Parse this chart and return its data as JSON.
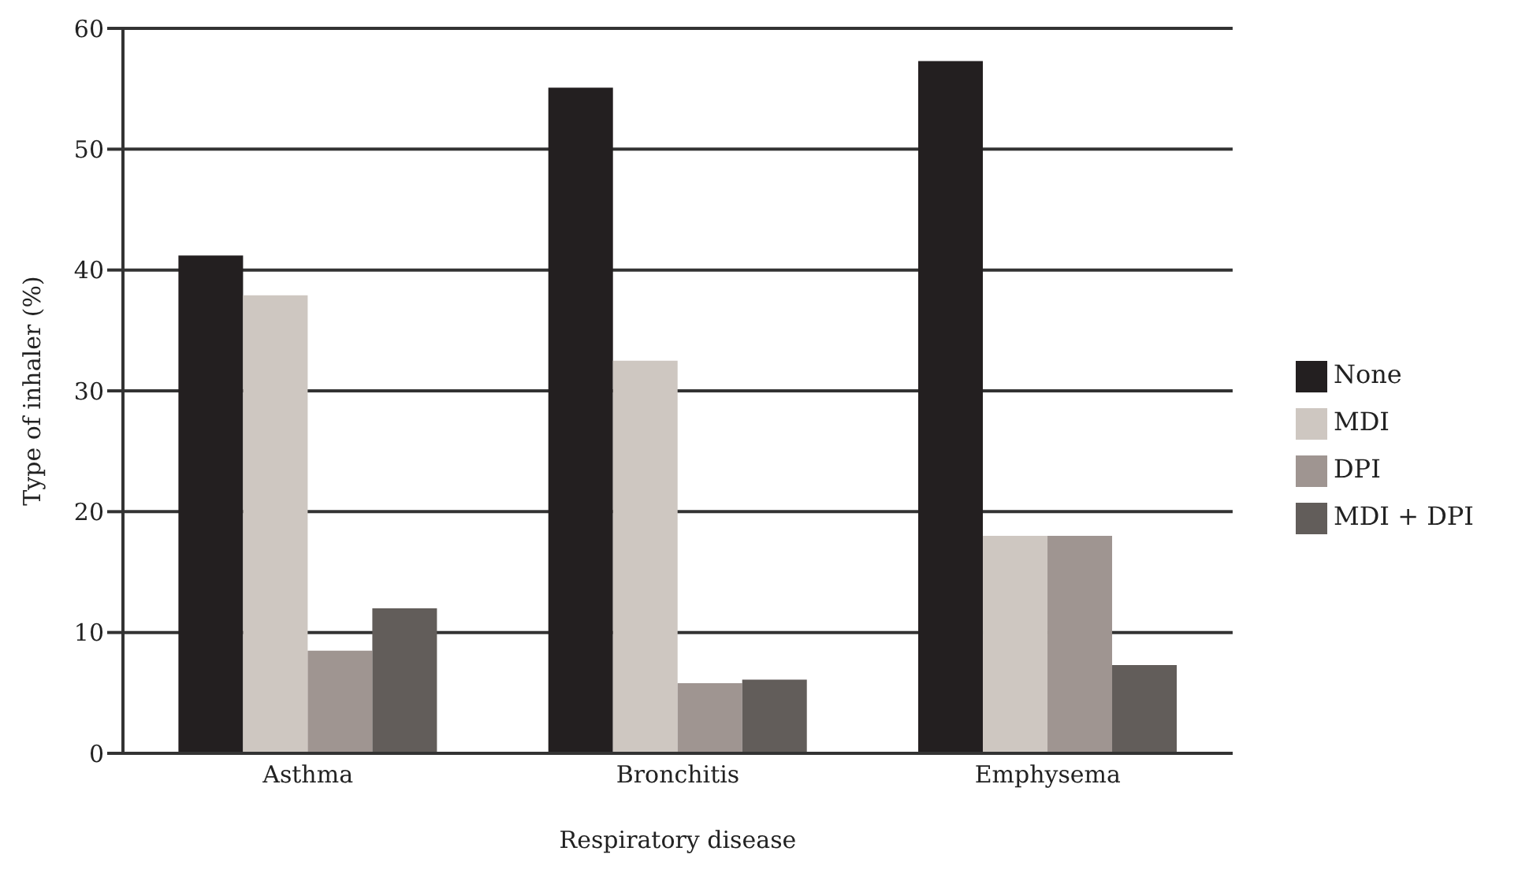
{
  "chart_data": {
    "type": "bar",
    "xlabel": "Respiratory disease",
    "ylabel": "Type of inhaler (%)",
    "categories": [
      "Asthma",
      "Bronchitis",
      "Emphysema"
    ],
    "series": [
      {
        "name": "None",
        "color": "#231f20",
        "values": [
          41.2,
          55.1,
          57.3
        ]
      },
      {
        "name": "MDI",
        "color": "#cec7c1",
        "values": [
          37.9,
          32.5,
          18.0
        ]
      },
      {
        "name": "DPI",
        "color": "#9f9591",
        "values": [
          8.5,
          5.8,
          18.0
        ]
      },
      {
        "name": "MDI + DPI",
        "color": "#625d5a",
        "values": [
          12.0,
          6.1,
          7.3
        ]
      }
    ],
    "ylim": [
      0,
      60
    ],
    "yticks": [
      0,
      10,
      20,
      30,
      40,
      50,
      60
    ],
    "grid": "y",
    "legend": "right"
  }
}
